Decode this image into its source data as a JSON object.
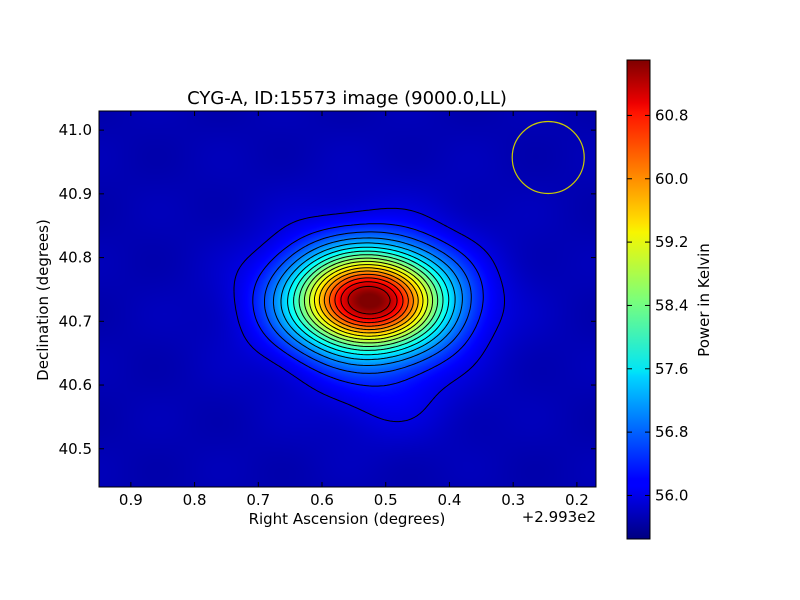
{
  "chart_data": {
    "type": "heatmap",
    "title": "CYG-A, ID:15573 image (9000.0,LL)",
    "xlabel": "Right Ascension (degrees)",
    "ylabel": "Declination (degrees)",
    "x_offset_label": "+2.993e2",
    "xlim": [
      0.95,
      0.17
    ],
    "ylim": [
      40.44,
      41.03
    ],
    "x_ticks": [
      0.9,
      0.8,
      0.7,
      0.6,
      0.5,
      0.4,
      0.3,
      0.2
    ],
    "x_tick_labels": [
      "0.9",
      "0.8",
      "0.7",
      "0.6",
      "0.5",
      "0.4",
      "0.3",
      "0.2"
    ],
    "y_ticks": [
      40.5,
      40.6,
      40.7,
      40.8,
      40.9,
      41.0
    ],
    "y_tick_labels": [
      "40.5",
      "40.6",
      "40.7",
      "40.8",
      "40.9",
      "41.0"
    ],
    "colorbar": {
      "label": "Power in Kelvin",
      "colormap": "jet",
      "range": [
        55.45,
        61.5
      ],
      "ticks": [
        56.0,
        56.8,
        57.6,
        58.4,
        59.2,
        60.0,
        60.8
      ],
      "tick_labels": [
        "56.0",
        "56.8",
        "57.6",
        "58.4",
        "59.2",
        "60.0",
        "60.8"
      ]
    },
    "source": {
      "peak_ra_offset": 0.527,
      "peak_dec": 40.733,
      "peak_value": 61.3,
      "background_value": 55.75
    },
    "contour_levels": 17,
    "beam": {
      "ra_offset": 0.245,
      "dec": 40.957,
      "color": "#cccc00"
    }
  }
}
